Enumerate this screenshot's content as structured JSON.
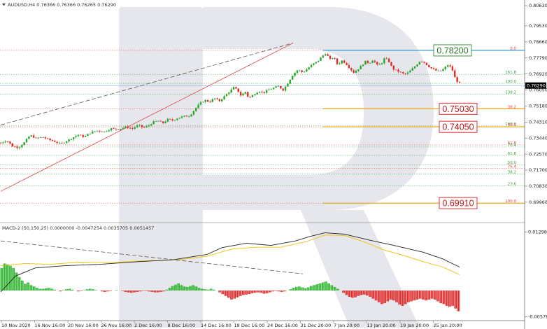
{
  "header": {
    "symbol_line": "AUDUSD,H4  0.76366 0.76366 0.76265 0.76290",
    "macd_line": "MACD-2 (50,150,25) 0.0000000 -0.0047254 0.0035705 0.0051457"
  },
  "chart_data": {
    "type": "candlestick",
    "symbol": "AUDUSD",
    "timeframe": "H4",
    "ohlc_header": {
      "open": 0.76366,
      "high": 0.76366,
      "low": 0.76265,
      "close": 0.7629
    },
    "current_price": "0.76290",
    "price_axis": {
      "range": [
        0.6908,
        0.8063
      ],
      "ticks": [
        "0.80630",
        "0.79530",
        "0.78660",
        "0.77790",
        "0.76920",
        "0.76050",
        "0.75180",
        "0.74310",
        "0.73440",
        "0.72570",
        "0.71700",
        "0.70830",
        "0.69960"
      ]
    },
    "time_axis": {
      "labels": [
        "10 Nov 2020",
        "16 Nov 16:00",
        "20 Nov 16:00",
        "26 Nov 16:00",
        "2 Dec 16:00",
        "8 Dec 16:00",
        "14 Dec 16:00",
        "18 Dec 16:00",
        "24 Dec 16:00",
        "31 Dec 20:00",
        "7 Jan 20:00",
        "13 Jan 20:00",
        "19 Jan 20:00",
        "25 Jan 20:00"
      ]
    },
    "price_series_path": [
      [
        0,
        0.7317
      ],
      [
        0.012,
        0.7332
      ],
      [
        0.024,
        0.73
      ],
      [
        0.036,
        0.7292
      ],
      [
        0.048,
        0.732
      ],
      [
        0.06,
        0.736
      ],
      [
        0.072,
        0.7342
      ],
      [
        0.085,
        0.735
      ],
      [
        0.098,
        0.7335
      ],
      [
        0.11,
        0.7325
      ],
      [
        0.122,
        0.7312
      ],
      [
        0.134,
        0.7328
      ],
      [
        0.146,
        0.7345
      ],
      [
        0.158,
        0.7362
      ],
      [
        0.17,
        0.735
      ],
      [
        0.182,
        0.7372
      ],
      [
        0.195,
        0.7385
      ],
      [
        0.21,
        0.7378
      ],
      [
        0.225,
        0.7395
      ],
      [
        0.24,
        0.7392
      ],
      [
        0.255,
        0.7405
      ],
      [
        0.268,
        0.7395
      ],
      [
        0.28,
        0.7415
      ],
      [
        0.29,
        0.74
      ],
      [
        0.3,
        0.741
      ],
      [
        0.31,
        0.743
      ],
      [
        0.32,
        0.7438
      ],
      [
        0.33,
        0.7425
      ],
      [
        0.34,
        0.7445
      ],
      [
        0.35,
        0.744
      ],
      [
        0.36,
        0.7452
      ],
      [
        0.372,
        0.7462
      ],
      [
        0.385,
        0.7465
      ],
      [
        0.395,
        0.75
      ],
      [
        0.405,
        0.753
      ],
      [
        0.415,
        0.755
      ],
      [
        0.425,
        0.754
      ],
      [
        0.435,
        0.756
      ],
      [
        0.445,
        0.7545
      ],
      [
        0.455,
        0.757
      ],
      [
        0.465,
        0.7595
      ],
      [
        0.475,
        0.762
      ],
      [
        0.483,
        0.76
      ],
      [
        0.49,
        0.757
      ],
      [
        0.497,
        0.76
      ],
      [
        0.505,
        0.756
      ],
      [
        0.515,
        0.758
      ],
      [
        0.525,
        0.76
      ],
      [
        0.535,
        0.759
      ],
      [
        0.545,
        0.7605
      ],
      [
        0.555,
        0.7615
      ],
      [
        0.565,
        0.7625
      ],
      [
        0.575,
        0.7605
      ],
      [
        0.585,
        0.7645
      ],
      [
        0.595,
        0.769
      ],
      [
        0.605,
        0.7715
      ],
      [
        0.615,
        0.77
      ],
      [
        0.625,
        0.7722
      ],
      [
        0.635,
        0.7745
      ],
      [
        0.645,
        0.776
      ],
      [
        0.655,
        0.779
      ],
      [
        0.662,
        0.7805
      ],
      [
        0.67,
        0.777
      ],
      [
        0.678,
        0.7785
      ],
      [
        0.686,
        0.774
      ],
      [
        0.694,
        0.7765
      ],
      [
        0.702,
        0.775
      ],
      [
        0.71,
        0.7725
      ],
      [
        0.718,
        0.77
      ],
      [
        0.726,
        0.7715
      ],
      [
        0.734,
        0.7735
      ],
      [
        0.742,
        0.776
      ],
      [
        0.75,
        0.775
      ],
      [
        0.758,
        0.777
      ],
      [
        0.766,
        0.774
      ],
      [
        0.774,
        0.7745
      ],
      [
        0.782,
        0.778
      ],
      [
        0.79,
        0.776
      ],
      [
        0.798,
        0.772
      ],
      [
        0.806,
        0.771
      ],
      [
        0.814,
        0.77
      ],
      [
        0.822,
        0.769
      ],
      [
        0.83,
        0.77
      ],
      [
        0.838,
        0.772
      ],
      [
        0.846,
        0.774
      ],
      [
        0.854,
        0.7765
      ],
      [
        0.862,
        0.7755
      ],
      [
        0.87,
        0.7735
      ],
      [
        0.878,
        0.772
      ],
      [
        0.886,
        0.771
      ],
      [
        0.894,
        0.7705
      ],
      [
        0.902,
        0.772
      ],
      [
        0.91,
        0.774
      ],
      [
        0.918,
        0.7725
      ],
      [
        0.926,
        0.766
      ],
      [
        0.934,
        0.764
      ]
    ],
    "price_series_range": {
      "x_start": 1,
      "x_end": 657
    },
    "trend_lines": [
      {
        "style": "dashed",
        "color": "#555555",
        "from": [
          0.0,
          0.7415
        ],
        "to": [
          0.595,
          0.786
        ]
      },
      {
        "style": "solid",
        "color": "#e04040",
        "from": [
          0.0,
          0.7055
        ],
        "to": [
          0.595,
          0.786
        ]
      }
    ],
    "callouts": [
      {
        "text": "0.78200",
        "value": 0.782,
        "border": "#3a9a3a",
        "text_color": "#2a7a2a",
        "line": "#2a8fd0"
      },
      {
        "text": "0.75030",
        "value": 0.7503,
        "border": "#e03030",
        "text_color": "#c01818",
        "line": "#f0a000"
      },
      {
        "text": "0.74050",
        "value": 0.7405,
        "border": "#e03030",
        "text_color": "#c01818",
        "line": "#f0a000"
      },
      {
        "text": "0.69910",
        "value": 0.6991,
        "border": "#e03030",
        "text_color": "#c01818",
        "line": "#f0a000"
      }
    ],
    "fib_levels": [
      {
        "label": "0.0",
        "value": 0.782,
        "color": "#e04040"
      },
      {
        "label": "161.8",
        "value": 0.769,
        "color": "#3a9a3a"
      },
      {
        "label": "100.0",
        "value": 0.7641,
        "color": "#3a9a3a"
      },
      {
        "label": "138.2",
        "value": 0.7583,
        "color": "#3a9a3a"
      },
      {
        "label": "38.2",
        "value": 0.7503,
        "color": "#e04040"
      },
      {
        "label": "100.0",
        "value": 0.741,
        "color": "#3a9a3a"
      },
      {
        "label": "50.0",
        "value": 0.7405,
        "color": "#e04040"
      },
      {
        "label": "61.8",
        "value": 0.7307,
        "color": "#e04040"
      },
      {
        "label": "76.4",
        "value": 0.7296,
        "color": "#3a9a3a"
      },
      {
        "label": "61.8",
        "value": 0.725,
        "color": "#3a9a3a"
      },
      {
        "label": "50.0",
        "value": 0.72,
        "color": "#3a9a3a"
      },
      {
        "label": "76.4",
        "value": 0.718,
        "color": "#e04040"
      },
      {
        "label": "38.2",
        "value": 0.715,
        "color": "#3a9a3a"
      },
      {
        "label": "23.6",
        "value": 0.7085,
        "color": "#3a9a3a"
      },
      {
        "label": "100.0",
        "value": 0.6991,
        "color": "#e04040"
      }
    ],
    "macd": {
      "name": "MACD-2 (50,150,25)",
      "values_header": [
        0.0,
        -0.0047254,
        0.0035705,
        0.0051457
      ],
      "axis_ticks": [
        "0.0129829",
        "-0.0057815"
      ],
      "range": [
        -0.0062,
        0.0132
      ],
      "histogram_colors": {
        "up": "#2fb52f",
        "down": "#e02b2b"
      },
      "line_colors": {
        "main": "#222222",
        "signal": "#f0c000"
      },
      "dashed_trend": {
        "from": [
          0.0,
          0.011
        ],
        "to": [
          0.615,
          0.0037
        ]
      },
      "main_line": [
        [
          0,
          -0.0003
        ],
        [
          0.03,
          0.0032
        ],
        [
          0.07,
          0.005
        ],
        [
          0.13,
          0.0055
        ],
        [
          0.2,
          0.0058
        ],
        [
          0.28,
          0.0064
        ],
        [
          0.35,
          0.0068
        ],
        [
          0.42,
          0.008
        ],
        [
          0.45,
          0.0095
        ],
        [
          0.5,
          0.0105
        ],
        [
          0.55,
          0.01
        ],
        [
          0.6,
          0.011
        ],
        [
          0.63,
          0.012
        ],
        [
          0.66,
          0.0128
        ],
        [
          0.7,
          0.0125
        ],
        [
          0.75,
          0.0112
        ],
        [
          0.8,
          0.01
        ],
        [
          0.86,
          0.0085
        ],
        [
          0.9,
          0.007
        ],
        [
          0.934,
          0.0052
        ]
      ],
      "signal_line": [
        [
          0,
          0.0055
        ],
        [
          0.05,
          0.006
        ],
        [
          0.1,
          0.0058
        ],
        [
          0.16,
          0.0063
        ],
        [
          0.22,
          0.0062
        ],
        [
          0.3,
          0.0066
        ],
        [
          0.36,
          0.0068
        ],
        [
          0.42,
          0.0076
        ],
        [
          0.47,
          0.0092
        ],
        [
          0.52,
          0.0096
        ],
        [
          0.57,
          0.0096
        ],
        [
          0.62,
          0.0108
        ],
        [
          0.66,
          0.0123
        ],
        [
          0.7,
          0.0122
        ],
        [
          0.74,
          0.0108
        ],
        [
          0.78,
          0.009
        ],
        [
          0.82,
          0.0078
        ],
        [
          0.86,
          0.0064
        ],
        [
          0.9,
          0.0052
        ],
        [
          0.934,
          0.0035
        ]
      ],
      "histogram": [
        [
          0.0,
          0.005
        ],
        [
          0.006,
          0.006
        ],
        [
          0.012,
          0.0058
        ],
        [
          0.018,
          0.0055
        ],
        [
          0.024,
          0.005
        ],
        [
          0.03,
          0.004
        ],
        [
          0.036,
          0.003
        ],
        [
          0.042,
          0.0022
        ],
        [
          0.048,
          0.0015
        ],
        [
          0.054,
          0.0018
        ],
        [
          0.06,
          0.0012
        ],
        [
          0.066,
          0.0009
        ],
        [
          0.072,
          0.0006
        ],
        [
          0.078,
          0.0004
        ],
        [
          0.084,
          0.0004
        ],
        [
          0.09,
          0.0005
        ],
        [
          0.096,
          0.0006
        ],
        [
          0.102,
          0.0004
        ],
        [
          0.108,
          0.0002
        ],
        [
          0.114,
          0.0
        ],
        [
          0.12,
          -0.0002
        ],
        [
          0.126,
          0.0001
        ],
        [
          0.132,
          0.0003
        ],
        [
          0.138,
          0.0004
        ],
        [
          0.144,
          0.0002
        ],
        [
          0.15,
          0.0
        ],
        [
          0.156,
          -0.0002
        ],
        [
          0.162,
          -0.0001
        ],
        [
          0.168,
          0.0001
        ],
        [
          0.174,
          0.0003
        ],
        [
          0.18,
          0.0004
        ],
        [
          0.186,
          0.0003
        ],
        [
          0.192,
          0.0001
        ],
        [
          0.198,
          0.0
        ],
        [
          0.204,
          -0.0002
        ],
        [
          0.21,
          -0.0003
        ],
        [
          0.216,
          -0.0002
        ],
        [
          0.222,
          -0.0001
        ],
        [
          0.228,
          0.0
        ],
        [
          0.234,
          0.0001
        ],
        [
          0.24,
          0.0
        ],
        [
          0.246,
          -0.0001
        ],
        [
          0.252,
          -0.0003
        ],
        [
          0.258,
          -0.0004
        ],
        [
          0.264,
          -0.0005
        ],
        [
          0.27,
          -0.0004
        ],
        [
          0.276,
          -0.0003
        ],
        [
          0.282,
          -0.0002
        ],
        [
          0.288,
          -0.0001
        ],
        [
          0.294,
          -0.0001
        ],
        [
          0.3,
          -0.0002
        ],
        [
          0.306,
          -0.0003
        ],
        [
          0.312,
          -0.0004
        ],
        [
          0.318,
          -0.0004
        ],
        [
          0.324,
          -0.0003
        ],
        [
          0.33,
          -0.0002
        ],
        [
          0.336,
          0.0002
        ],
        [
          0.342,
          0.0006
        ],
        [
          0.348,
          0.001
        ],
        [
          0.354,
          0.0013
        ],
        [
          0.36,
          0.0016
        ],
        [
          0.366,
          0.0012
        ],
        [
          0.372,
          0.0009
        ],
        [
          0.378,
          0.0008
        ],
        [
          0.384,
          0.001
        ],
        [
          0.39,
          0.0012
        ],
        [
          0.396,
          0.0009
        ],
        [
          0.402,
          0.0006
        ],
        [
          0.408,
          0.0004
        ],
        [
          0.414,
          0.0003
        ],
        [
          0.42,
          0.0002
        ],
        [
          0.426,
          0.0004
        ],
        [
          0.432,
          0.0002
        ],
        [
          0.438,
          0.0
        ],
        [
          0.444,
          -0.0004
        ],
        [
          0.45,
          -0.0008
        ],
        [
          0.456,
          -0.0012
        ],
        [
          0.462,
          -0.0016
        ],
        [
          0.468,
          -0.002
        ],
        [
          0.474,
          -0.0018
        ],
        [
          0.48,
          -0.0015
        ],
        [
          0.486,
          -0.0012
        ],
        [
          0.492,
          -0.001
        ],
        [
          0.498,
          -0.0009
        ],
        [
          0.504,
          -0.0008
        ],
        [
          0.51,
          -0.0006
        ],
        [
          0.516,
          -0.0005
        ],
        [
          0.522,
          -0.0004
        ],
        [
          0.528,
          -0.0005
        ],
        [
          0.534,
          -0.0007
        ],
        [
          0.54,
          -0.0006
        ],
        [
          0.546,
          -0.0004
        ],
        [
          0.552,
          -0.0002
        ],
        [
          0.558,
          -0.0001
        ],
        [
          0.564,
          -0.0002
        ],
        [
          0.57,
          -0.0003
        ],
        [
          0.576,
          -0.0002
        ],
        [
          0.582,
          0.0
        ],
        [
          0.588,
          0.0003
        ],
        [
          0.594,
          0.0006
        ],
        [
          0.6,
          0.0008
        ],
        [
          0.606,
          0.0009
        ],
        [
          0.612,
          0.0007
        ],
        [
          0.618,
          0.0005
        ],
        [
          0.624,
          0.0007
        ],
        [
          0.63,
          0.001
        ],
        [
          0.636,
          0.0012
        ],
        [
          0.642,
          0.0014
        ],
        [
          0.648,
          0.0016
        ],
        [
          0.654,
          0.0018
        ],
        [
          0.66,
          0.002
        ],
        [
          0.666,
          0.0016
        ],
        [
          0.672,
          0.0012
        ],
        [
          0.678,
          0.0008
        ],
        [
          0.684,
          0.0004
        ],
        [
          0.69,
          0.0
        ],
        [
          0.696,
          -0.0005
        ],
        [
          0.702,
          -0.001
        ],
        [
          0.708,
          -0.0014
        ],
        [
          0.714,
          -0.0016
        ],
        [
          0.72,
          -0.0015
        ],
        [
          0.726,
          -0.0012
        ],
        [
          0.732,
          -0.001
        ],
        [
          0.738,
          -0.0009
        ],
        [
          0.744,
          -0.0011
        ],
        [
          0.75,
          -0.0014
        ],
        [
          0.756,
          -0.0018
        ],
        [
          0.762,
          -0.0022
        ],
        [
          0.768,
          -0.0026
        ],
        [
          0.774,
          -0.003
        ],
        [
          0.78,
          -0.0028
        ],
        [
          0.786,
          -0.0024
        ],
        [
          0.792,
          -0.002
        ],
        [
          0.798,
          -0.0022
        ],
        [
          0.804,
          -0.0026
        ],
        [
          0.81,
          -0.0031
        ],
        [
          0.816,
          -0.0034
        ],
        [
          0.822,
          -0.003
        ],
        [
          0.828,
          -0.0026
        ],
        [
          0.834,
          -0.0024
        ],
        [
          0.84,
          -0.0022
        ],
        [
          0.846,
          -0.002
        ],
        [
          0.852,
          -0.0018
        ],
        [
          0.858,
          -0.002
        ],
        [
          0.864,
          -0.0022
        ],
        [
          0.87,
          -0.002
        ],
        [
          0.876,
          -0.0018
        ],
        [
          0.882,
          -0.002
        ],
        [
          0.888,
          -0.0024
        ],
        [
          0.894,
          -0.0028
        ],
        [
          0.9,
          -0.003
        ],
        [
          0.906,
          -0.0034
        ],
        [
          0.912,
          -0.0036
        ],
        [
          0.918,
          -0.0034
        ],
        [
          0.924,
          -0.004
        ],
        [
          0.93,
          -0.0046
        ]
      ]
    }
  }
}
